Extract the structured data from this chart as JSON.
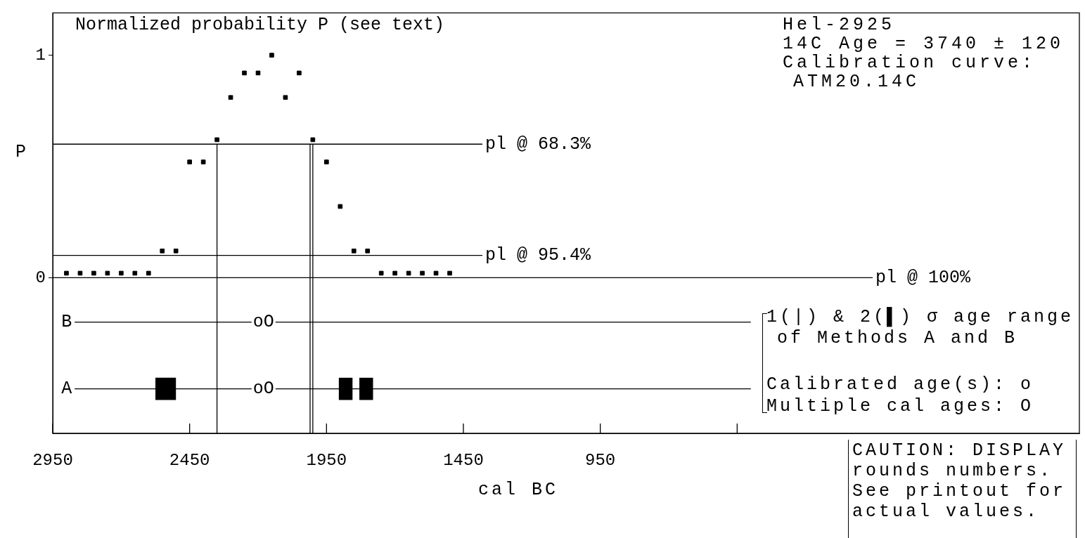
{
  "chart_data": {
    "type": "scatter",
    "title": "Normalized probability P (see text)",
    "xlabel": "cal BC",
    "ylabel": "P",
    "xlim": [
      2950,
      -800
    ],
    "xticks": [
      2950,
      2450,
      1950,
      1450,
      950,
      {
        "value": 450,
        "label": null
      }
    ],
    "ylim": [
      -0.7,
      1.19
    ],
    "yticks": [
      0,
      1
    ],
    "grid": false,
    "legend": false,
    "marker": "square",
    "series": [
      {
        "type": "scatter",
        "color": "#000000",
        "x": [
          2900,
          2850,
          2800,
          2750,
          2700,
          2650,
          2600,
          2550,
          2500,
          2450,
          2400,
          2350,
          2300,
          2250,
          2200,
          2150,
          2100,
          2050,
          2000,
          1950,
          1900,
          1850,
          1800,
          1750,
          1700,
          1650,
          1600,
          1550,
          1500
        ],
        "values": [
          0.02,
          0.02,
          0.02,
          0.02,
          0.02,
          0.02,
          0.02,
          0.12,
          0.12,
          0.52,
          0.52,
          0.62,
          0.81,
          0.92,
          0.92,
          1,
          0.81,
          0.92,
          0.62,
          0.52,
          0.32,
          0.12,
          0.12,
          0.02,
          0.02,
          0.02,
          0.02,
          0.02,
          0.02
        ]
      },
      {
        "type": "line",
        "name": "B",
        "color": "#000000",
        "marker": "none",
        "x": [
          2870,
          400
        ],
        "values": [
          -0.2,
          -0.2
        ]
      },
      {
        "type": "line",
        "name": "A",
        "color": "#000000",
        "marker": "none",
        "x": [
          2870,
          2575,
          2500,
          2300,
          1905,
          1855,
          1842,
          1830,
          1780,
          400
        ],
        "values": [
          -0.5,
          -0.5,
          -0.5,
          -0.5,
          -0.5,
          -0.5,
          -0.5,
          -0.5,
          -0.5,
          -0.5
        ],
        "lower": [
          null,
          -0.55,
          -0.55,
          null,
          -0.55,
          -0.55,
          null,
          -0.55,
          -0.55,
          null
        ],
        "upper": [
          null,
          -0.45,
          -0.45,
          null,
          -0.45,
          -0.45,
          null,
          -0.45,
          -0.45,
          null
        ]
      }
    ],
    "ref_lines": [
      {
        "axis": "y",
        "value": 0.6,
        "label": "pl @ 68.3%"
      },
      {
        "axis": "y",
        "value": 0.1,
        "label": "pl @ 95.4%"
      },
      {
        "axis": "y",
        "value": 0,
        "label": "pl @ 100%"
      },
      {
        "axis": "x",
        "value": 2350
      },
      {
        "axis": "x",
        "value": 2010
      },
      {
        "axis": "x",
        "value": 2000
      }
    ],
    "annotations": [
      "Hel-2925",
      "14C Age = 3740 ± 120",
      "Calibration curve:",
      "ATM20.14C",
      "1(|) & 2(▌) σ age range",
      "of Methods A and B",
      "Calibrated age(s): o",
      "Multiple cal ages: O",
      "CAUTION: DISPLAY",
      "rounds numbers.",
      "See printout for",
      "actual values.",
      {
        "text": "oO",
        "x": 2180,
        "y": -0.2
      },
      {
        "text": "oO",
        "x": 2180,
        "y": -0.5
      }
    ]
  }
}
